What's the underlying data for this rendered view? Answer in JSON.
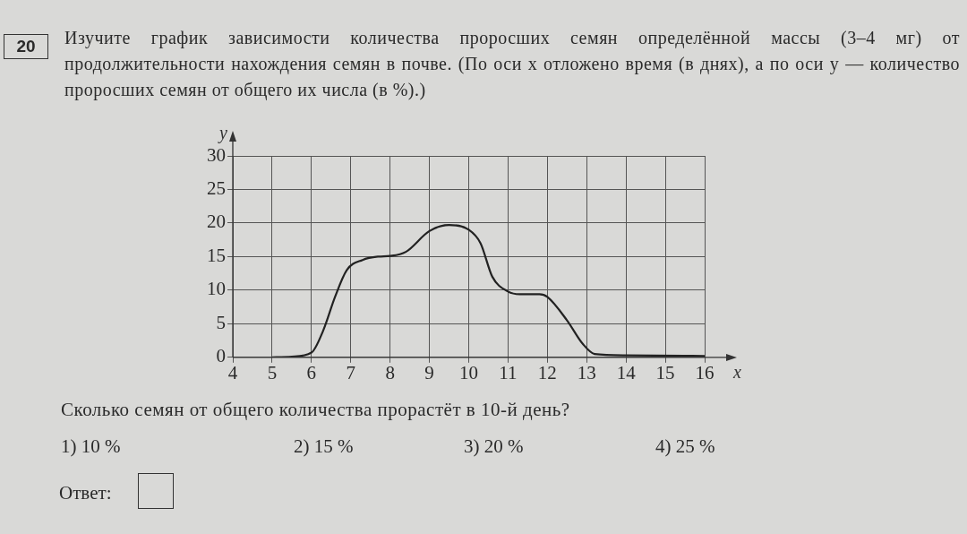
{
  "chart_data": {
    "type": "line",
    "title": "Изучите график зависимости количества проросших семян определённой массы (3–4 мг) от продолжительности нахождения семян в почве. (По оси x отложено время (в днях), а по оси y — количество проросших семян от общего их числа (в %).)",
    "xlabel": "x",
    "ylabel": "y",
    "x": [
      5,
      5.5,
      6,
      6.3,
      6.6,
      6.9,
      7.3,
      7.7,
      8,
      8.4,
      9,
      9.5,
      10,
      10.3,
      10.6,
      11,
      11.3,
      11.8,
      12,
      12.5,
      12.9,
      13.2,
      14,
      16
    ],
    "series": [
      {
        "color": "#222222",
        "values": [
          0,
          0.1,
          0.7,
          4,
          9,
          13,
          14.5,
          15,
          15.1,
          15.7,
          18.8,
          19.7,
          19,
          17,
          12,
          9.8,
          9.4,
          9.4,
          9,
          5.5,
          2,
          0.5,
          0.3,
          0.2
        ]
      }
    ],
    "xlim": [
      4,
      16
    ],
    "xticks": [
      4,
      5,
      6,
      7,
      8,
      9,
      10,
      11,
      12,
      13,
      14,
      15,
      16
    ],
    "ylim": [
      0,
      30
    ],
    "yticks": [
      0,
      5,
      10,
      15,
      20,
      25,
      30
    ],
    "grid": true,
    "legend": false,
    "marker": "none",
    "line_style": "solid",
    "annotations": [
      "20",
      "Сколько семян от общего количества прорастёт в 10-й день?",
      "1) 10 %",
      "2) 15 %",
      "3) 20 %",
      "4) 25 %",
      "Ответ:"
    ]
  }
}
